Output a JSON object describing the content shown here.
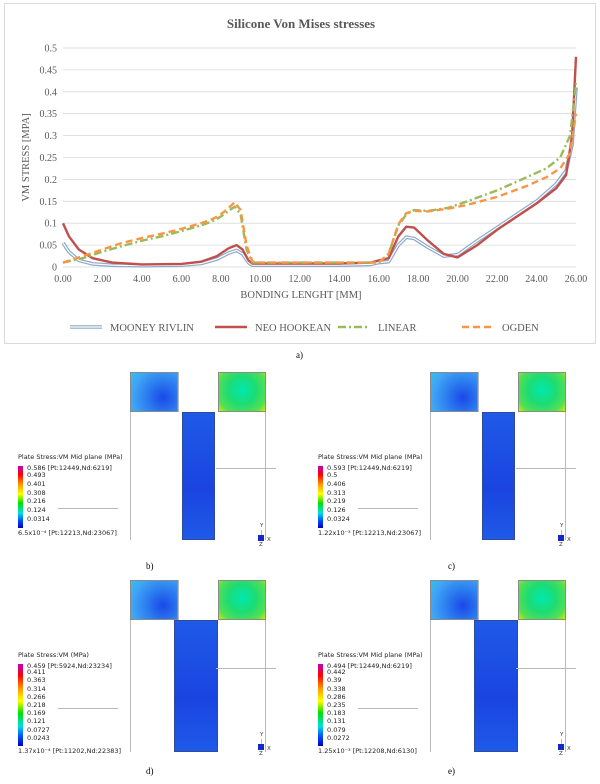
{
  "chart_data": {
    "type": "line",
    "title": "Silicone Von Mises stresses",
    "xlabel": "BONDING LENGHT [MM]",
    "ylabel": "VM STRESS [MPA]",
    "xlim": [
      0,
      26
    ],
    "ylim": [
      0,
      0.5
    ],
    "x_ticks": [
      "0.00",
      "2.00",
      "4.00",
      "6.00",
      "8.00",
      "10.00",
      "12.00",
      "14.00",
      "16.00",
      "18.00",
      "20.00",
      "22.00",
      "24.00",
      "26.00"
    ],
    "y_ticks": [
      "0",
      "0.05",
      "0.1",
      "0.15",
      "0.2",
      "0.25",
      "0.3",
      "0.35",
      "0.4",
      "0.45",
      "0.5"
    ],
    "grid": true,
    "legend_position": "bottom",
    "series": [
      {
        "name": "MOONEY RIVLIN",
        "color": "#8fa9c9",
        "style": "double",
        "x": [
          0,
          0.3,
          0.8,
          1.5,
          2.5,
          4,
          6,
          7,
          7.8,
          8.4,
          8.8,
          9.1,
          9.4,
          9.6,
          10,
          12,
          14,
          15.6,
          16,
          16.5,
          17,
          17.4,
          17.8,
          18.5,
          19.3,
          20,
          21,
          22,
          23,
          24,
          25,
          25.5,
          25.8,
          26
        ],
        "y": [
          0.055,
          0.035,
          0.015,
          0.007,
          0.004,
          0.003,
          0.004,
          0.008,
          0.018,
          0.032,
          0.038,
          0.03,
          0.01,
          0.004,
          0.004,
          0.004,
          0.004,
          0.006,
          0.01,
          0.012,
          0.05,
          0.068,
          0.065,
          0.045,
          0.025,
          0.028,
          0.06,
          0.09,
          0.12,
          0.15,
          0.19,
          0.22,
          0.28,
          0.41
        ]
      },
      {
        "name": "NEO HOOKEAN",
        "color": "#c0504d",
        "style": "solid",
        "x": [
          0,
          0.3,
          0.8,
          1.5,
          2.5,
          4,
          6,
          7,
          7.8,
          8.4,
          8.8,
          9.1,
          9.4,
          9.6,
          10,
          12,
          14,
          15.6,
          16,
          16.5,
          17,
          17.4,
          17.8,
          18.5,
          19.3,
          20,
          21,
          22,
          23,
          24,
          25,
          25.5,
          25.8,
          26
        ],
        "y": [
          0.1,
          0.07,
          0.04,
          0.02,
          0.01,
          0.006,
          0.007,
          0.012,
          0.025,
          0.043,
          0.05,
          0.04,
          0.015,
          0.008,
          0.008,
          0.008,
          0.008,
          0.01,
          0.015,
          0.02,
          0.07,
          0.092,
          0.09,
          0.06,
          0.03,
          0.022,
          0.05,
          0.085,
          0.115,
          0.145,
          0.18,
          0.21,
          0.3,
          0.48
        ]
      },
      {
        "name": "LINEAR",
        "color": "#9bbb59",
        "style": "dashdot",
        "x": [
          0,
          1,
          2,
          3,
          4,
          5,
          6,
          7,
          7.6,
          8,
          8.4,
          8.7,
          9,
          9.3,
          9.6,
          10,
          12,
          14,
          16,
          16.5,
          17,
          17.4,
          17.8,
          18.5,
          19.5,
          20.5,
          22,
          23.5,
          24.5,
          25.2,
          25.7,
          26
        ],
        "y": [
          0.01,
          0.02,
          0.035,
          0.048,
          0.06,
          0.07,
          0.082,
          0.095,
          0.105,
          0.115,
          0.128,
          0.138,
          0.12,
          0.04,
          0.01,
          0.01,
          0.01,
          0.01,
          0.01,
          0.03,
          0.095,
          0.12,
          0.13,
          0.128,
          0.135,
          0.15,
          0.175,
          0.205,
          0.225,
          0.25,
          0.3,
          0.42
        ]
      },
      {
        "name": "OGDEN",
        "color": "#f79646",
        "style": "dashed",
        "x": [
          0,
          1,
          2,
          3,
          4,
          5,
          6,
          7,
          7.6,
          8,
          8.4,
          8.7,
          9,
          9.3,
          9.6,
          10,
          12,
          14,
          16,
          16.5,
          17,
          17.4,
          17.8,
          18.5,
          19.5,
          20.5,
          22,
          23.5,
          24.5,
          25.2,
          25.7,
          26
        ],
        "y": [
          0.01,
          0.025,
          0.04,
          0.055,
          0.066,
          0.076,
          0.087,
          0.1,
          0.11,
          0.12,
          0.135,
          0.148,
          0.13,
          0.05,
          0.012,
          0.01,
          0.01,
          0.01,
          0.01,
          0.03,
          0.098,
          0.123,
          0.128,
          0.127,
          0.133,
          0.142,
          0.16,
          0.185,
          0.205,
          0.225,
          0.26,
          0.35
        ]
      }
    ]
  },
  "captions": {
    "a": "a)",
    "b": "b)",
    "c": "c)",
    "d": "d)",
    "e": "e)"
  },
  "panels": {
    "b": {
      "title": "Plate Stress:VM Mid plane  (MPa)",
      "max": "0.586 [Pt:12449,Nd:6219]",
      "levels": [
        "0.493",
        "0.401",
        "0.308",
        "0.216",
        "0.124",
        "0.0314"
      ],
      "min": "6.5x10⁻⁴ [Pt:12213,Nd:23067]"
    },
    "c": {
      "title": "Plate Stress:VM Mid plane  (MPa)",
      "max": "0.593 [Pt:12449,Nd:6219]",
      "levels": [
        "0.5",
        "0.406",
        "0.313",
        "0.219",
        "0.126",
        "0.0324"
      ],
      "min": "1.22x10⁻³ [Pt:12213,Nd:23067]"
    },
    "d": {
      "title": "Plate Stress:VM  (MPa)",
      "max": "0.459 [Pt:5924,Nd:23234]",
      "levels": [
        "0.411",
        "0.363",
        "0.314",
        "0.266",
        "0.218",
        "0.169",
        "0.121",
        "0.0727",
        "0.0243"
      ],
      "min": "1.37x10⁻⁴ [Pt:11202,Nd:22383]"
    },
    "e": {
      "title": "Plate Stress:VM Mid plane  (MPa)",
      "max": "0.494 [Pt:12449,Nd:6219]",
      "levels": [
        "0.442",
        "0.39",
        "0.338",
        "0.286",
        "0.235",
        "0.183",
        "0.131",
        "0.079",
        "0.0272"
      ],
      "min": "1.25x10⁻³ [Pt:12208,Nd:6130]"
    }
  },
  "axis_labels": {
    "y": "Y",
    "z": "Z",
    "x": "X"
  }
}
